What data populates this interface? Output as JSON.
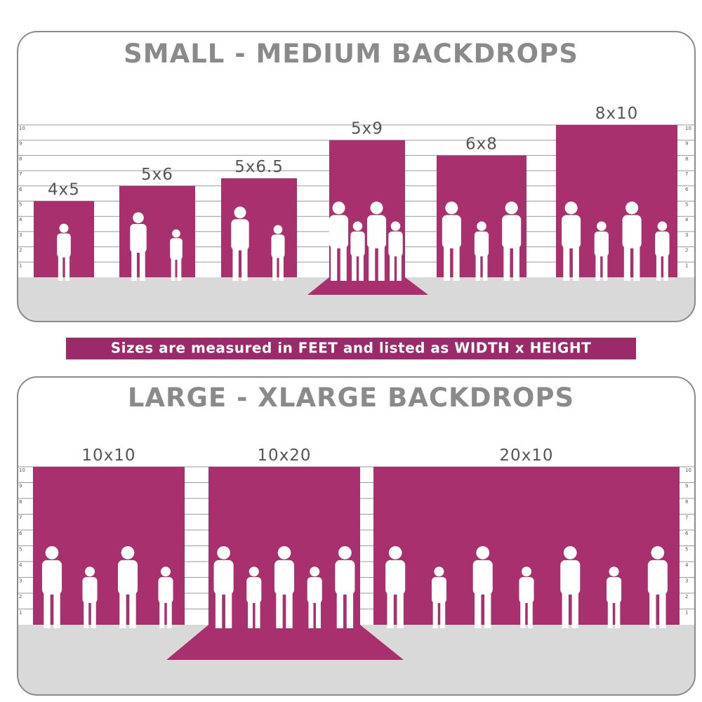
{
  "panels": [
    {
      "title": "SMALL - MEDIUM BACKDROPS",
      "scale": [
        1,
        2,
        3,
        4,
        5,
        6,
        7,
        8,
        9,
        10
      ],
      "items": [
        "4x5",
        "5x6",
        "5x6.5",
        "5x9",
        "6x8",
        "8x10"
      ]
    },
    {
      "title": "LARGE - XLARGE BACKDROPS",
      "scale": [
        1,
        2,
        3,
        4,
        5,
        6,
        7,
        8,
        9,
        10
      ],
      "items": [
        "10x10",
        "10x20",
        "20x10"
      ]
    }
  ],
  "note": "Sizes are measured in FEET and listed as WIDTH x HEIGHT"
}
